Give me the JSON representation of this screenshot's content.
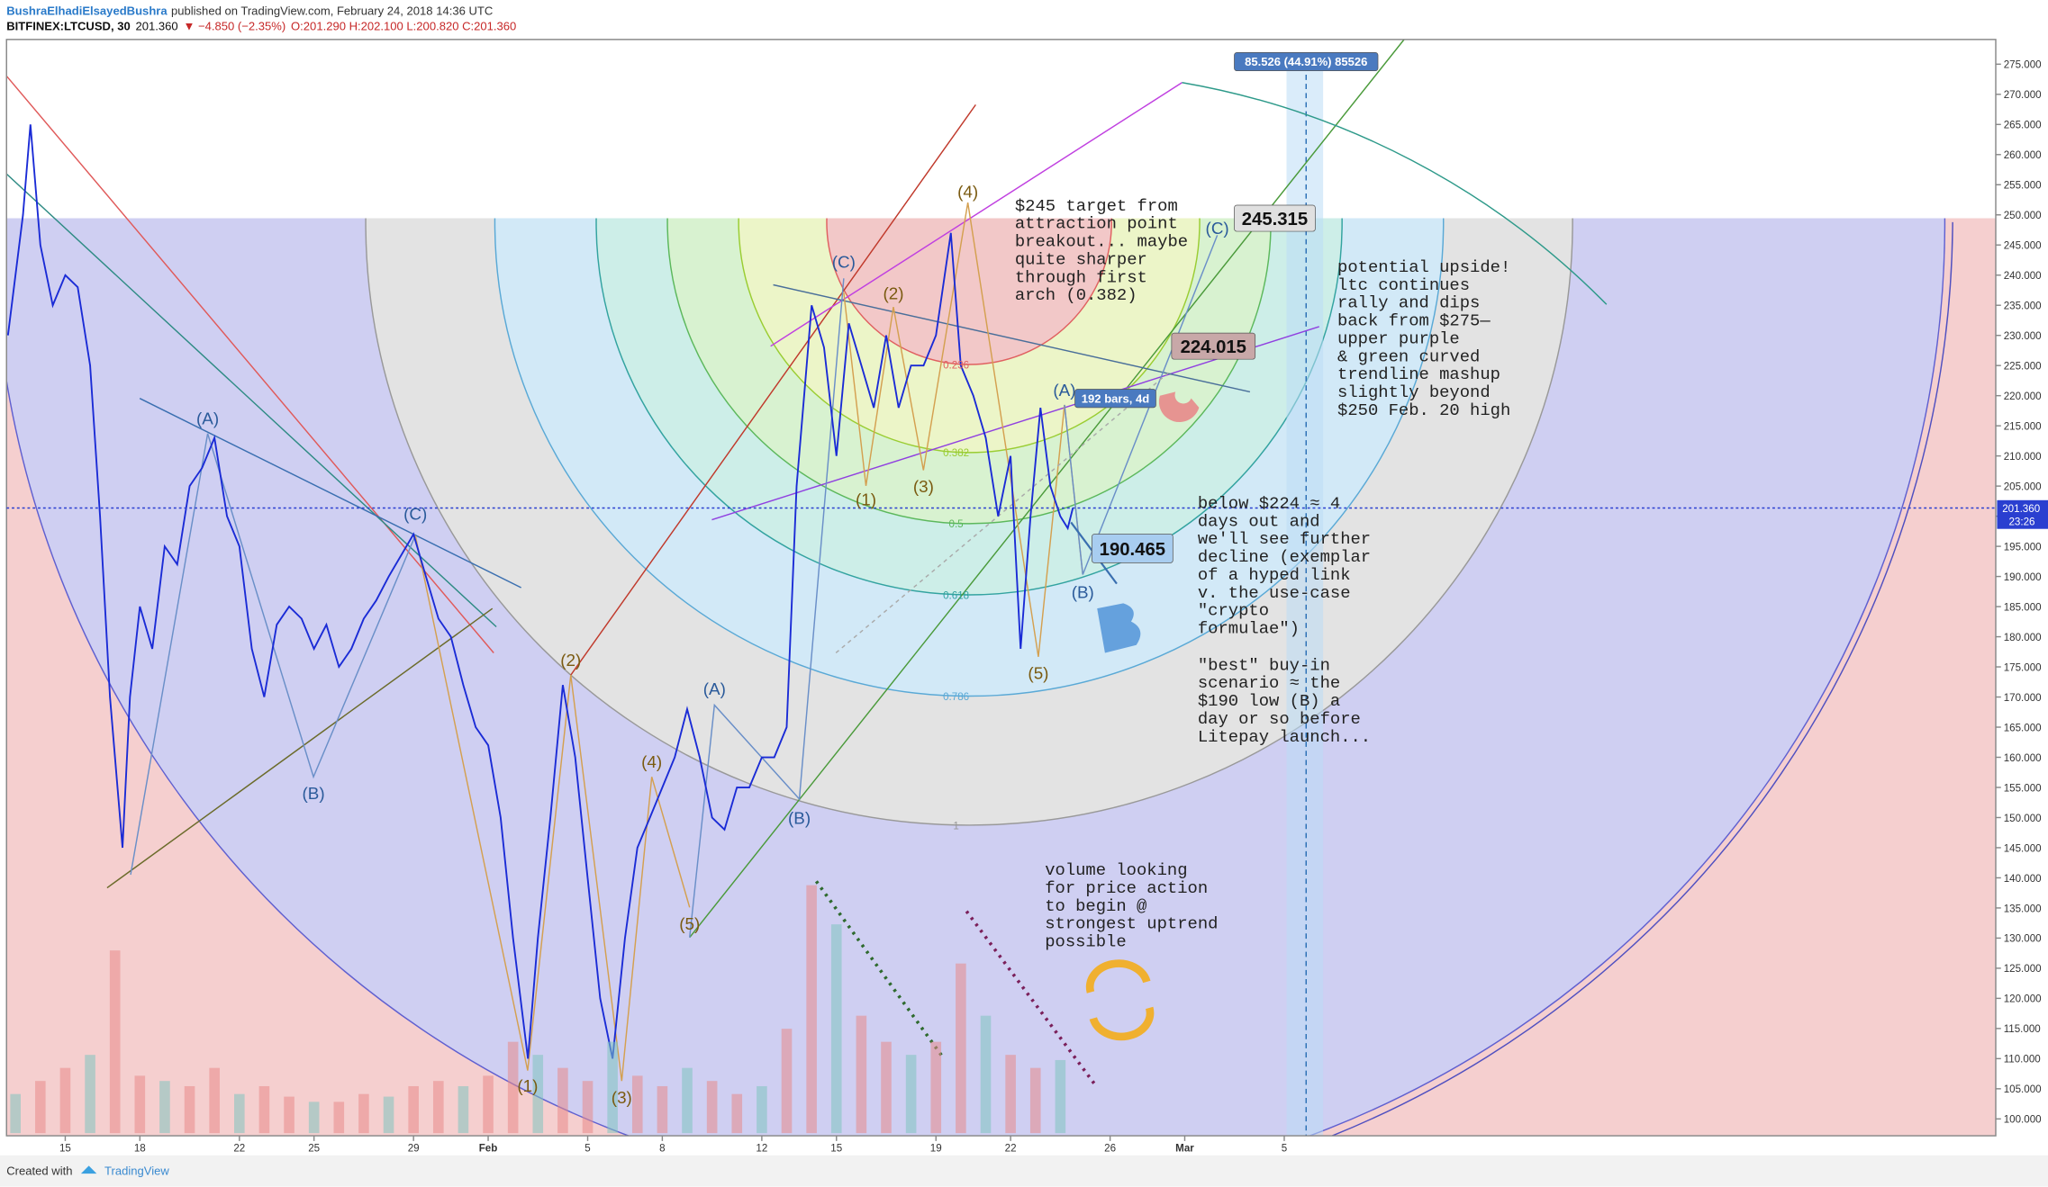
{
  "header": {
    "author": "BushraElhadiElsayedBushra",
    "published": "published on TradingView.com, February 24, 2018 14:36 UTC",
    "symbol": "BITFINEX:LTCUSD, 30",
    "last": "201.360",
    "change": "▼ −4.850 (−2.35%)",
    "ohlc": "O:201.290 H:202.100 L:200.820 C:201.360"
  },
  "footer": {
    "created": "Created with",
    "brand": "TradingView"
  },
  "chart_data": {
    "type": "line",
    "color": "#1a2bd6",
    "x": [
      12.7,
      13.3,
      13.6,
      14,
      14.5,
      15,
      15.5,
      16,
      16.4,
      16.8,
      17.3,
      17.6,
      18,
      18.5,
      19,
      19.5,
      20,
      20.5,
      21,
      21.5,
      22,
      22.5,
      23,
      23.5,
      24,
      24.5,
      25,
      25.5,
      26,
      26.5,
      27,
      27.5,
      28,
      29,
      29.5,
      30,
      30.5,
      31,
      31.5,
      32,
      32.5,
      33,
      33.6,
      34,
      34.5,
      35,
      35.5,
      36,
      36.5,
      37,
      37.5,
      38,
      38.5,
      39,
      39.5,
      40,
      40.5,
      41,
      41.5,
      42,
      42.5,
      43,
      43.5,
      44,
      44.4,
      44.8,
      45,
      45.5,
      46,
      46.5,
      47,
      47.5,
      48,
      48.5,
      49,
      49.5,
      50,
      50.6,
      51,
      51.5,
      52,
      52.5,
      53,
      53.4,
      53.8,
      54.2,
      54.6,
      55,
      55.3,
      55.5
    ],
    "values": [
      230,
      250,
      265,
      245,
      235,
      240,
      238,
      225,
      200,
      170,
      145,
      170,
      185,
      178,
      195,
      192,
      205,
      208,
      213,
      200,
      195,
      178,
      170,
      182,
      185,
      183,
      178,
      182,
      175,
      178,
      183,
      186,
      190,
      197,
      190,
      183,
      180,
      172,
      165,
      162,
      150,
      130,
      110,
      130,
      150,
      172,
      160,
      140,
      120,
      110,
      130,
      145,
      150,
      155,
      160,
      168,
      160,
      150,
      148,
      155,
      155,
      160,
      160,
      165,
      205,
      225,
      235,
      228,
      210,
      232,
      225,
      218,
      230,
      218,
      225,
      225,
      230,
      247,
      225,
      220,
      213,
      200,
      210,
      178,
      200,
      218,
      205,
      200,
      198,
      201.36
    ],
    "volume": {
      "color": "#e88a8a",
      "x": [
        13,
        14,
        15,
        16,
        17,
        18,
        19,
        20,
        21,
        22,
        23,
        24,
        25,
        26,
        27,
        28,
        29,
        30,
        31,
        32,
        33,
        34,
        35,
        36,
        37,
        38,
        39,
        40,
        41,
        42,
        43,
        44,
        45,
        46,
        47,
        48,
        49,
        50,
        51,
        52,
        53,
        54,
        55
      ],
      "values": [
        15,
        20,
        25,
        30,
        70,
        22,
        20,
        18,
        25,
        15,
        18,
        14,
        12,
        12,
        15,
        14,
        18,
        20,
        18,
        22,
        35,
        30,
        25,
        20,
        35,
        22,
        18,
        25,
        20,
        15,
        18,
        40,
        95,
        80,
        45,
        35,
        30,
        35,
        65,
        45,
        30,
        25,
        28
      ],
      "y2lim": [
        0,
        100
      ]
    },
    "xlim": [
      12.64,
      92.6
    ],
    "ylim": [
      97.2,
      279.1
    ],
    "xticks": [
      15,
      18,
      22,
      25,
      29,
      {
        "value": 32,
        "label": "Feb"
      },
      {
        "value": 36,
        "label": "5"
      },
      {
        "value": 39,
        "label": "8"
      },
      {
        "value": 43,
        "label": "12"
      },
      {
        "value": 46,
        "label": "15"
      },
      {
        "value": 50,
        "label": "19"
      },
      {
        "value": 53,
        "label": "22"
      },
      {
        "value": 57,
        "label": "26"
      },
      {
        "value": 60,
        "label": "Mar"
      },
      {
        "value": 64,
        "label": "5"
      }
    ],
    "yticks": [
      {
        "value": 100,
        "label": "100.000"
      },
      {
        "value": 105,
        "label": "105.000"
      },
      {
        "value": 110,
        "label": "110.000"
      },
      {
        "value": 115,
        "label": "115.000"
      },
      {
        "value": 120,
        "label": "120.000"
      },
      {
        "value": 125,
        "label": "125.000"
      },
      {
        "value": 130,
        "label": "130.000"
      },
      {
        "value": 135,
        "label": "135.000"
      },
      {
        "value": 140,
        "label": "140.000"
      },
      {
        "value": 145,
        "label": "145.000"
      },
      {
        "value": 150,
        "label": "150.000"
      },
      {
        "value": 155,
        "label": "155.000"
      },
      {
        "value": 160,
        "label": "160.000"
      },
      {
        "value": 165,
        "label": "165.000"
      },
      {
        "value": 170,
        "label": "170.000"
      },
      {
        "value": 175,
        "label": "175.000"
      },
      {
        "value": 180,
        "label": "180.000"
      },
      {
        "value": 185,
        "label": "185.000"
      },
      {
        "value": 190,
        "label": "190.000"
      },
      {
        "value": 195,
        "label": "195.000"
      },
      {
        "value": 200,
        "label": "200.000"
      },
      {
        "value": 205,
        "label": "205.000"
      },
      {
        "value": 210,
        "label": "210.000"
      },
      {
        "value": 215,
        "label": "215.000"
      },
      {
        "value": 220,
        "label": "220.000"
      },
      {
        "value": 225,
        "label": "225.000"
      },
      {
        "value": 230,
        "label": "230.000"
      },
      {
        "value": 235,
        "label": "235.000"
      },
      {
        "value": 240,
        "label": "240.000"
      },
      {
        "value": 245,
        "label": "245.000"
      },
      {
        "value": 250,
        "label": "250.000"
      },
      {
        "value": 255,
        "label": "255.000"
      },
      {
        "value": 260,
        "label": "260.000"
      },
      {
        "value": 265,
        "label": "265.000"
      },
      {
        "value": 270,
        "label": "270.000"
      },
      {
        "value": 275,
        "label": "275.000"
      }
    ],
    "last_price_label": "201.360",
    "countdown": "23:26",
    "fib_levels": [
      "0.236",
      "0.382",
      "0.5",
      "0.618",
      "0.786",
      "1"
    ],
    "wave_labels": [
      "(A)",
      "(B)",
      "(C)",
      "(2)",
      "(1)",
      "(3)",
      "(4)",
      "(5)",
      "(A)",
      "(B)",
      "(C)",
      "(1)",
      "(2)",
      "(3)",
      "(4)",
      "(5)",
      "(A)",
      "(B)",
      "(C)"
    ],
    "boxes": [
      "85.526 (44.91%) 85526",
      "245.315",
      "224.015",
      "190.465",
      "192 bars, 4d"
    ],
    "notes": [
      [
        "$245 target from",
        "attraction point",
        "breakout... maybe",
        "quite sharper",
        "through first",
        "arch (0.382)"
      ],
      [
        "potential upside!",
        "ltc continues",
        "rally and dips",
        "back from $275—",
        "upper purple",
        "& green curved",
        "trendline mashup",
        "slightly beyond",
        "$250 Feb. 20 high"
      ],
      [
        "below $224 ≈ 4",
        "days out and",
        "we'll see further",
        "decline (exemplar",
        "of a hyped link",
        "v. the use-case",
        "\"crypto",
        "formulae\")"
      ],
      [
        "\"best\" buy-in",
        "scenario ≈  the",
        "$190 low (B) a",
        "day or so before",
        "Litepay launch..."
      ],
      [
        "volume looking",
        "for price action",
        "to begin @",
        "strongest uptrend",
        "possible"
      ]
    ]
  }
}
